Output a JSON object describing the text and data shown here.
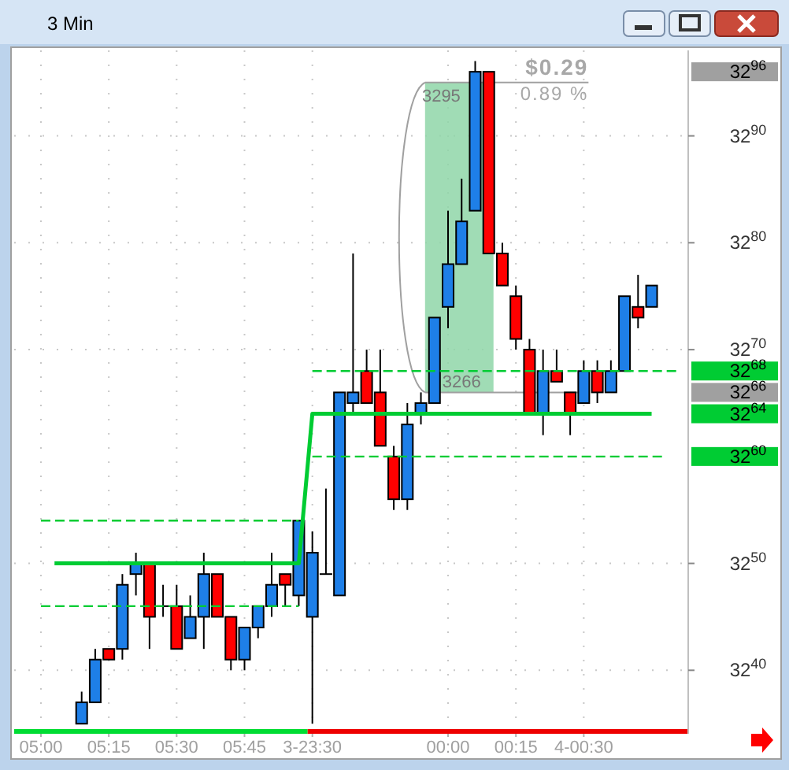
{
  "chart_data": {
    "type": "candlestick",
    "title": "3 Min",
    "categories": [
      "05:00",
      null,
      null,
      null,
      null,
      "05:15",
      null,
      null,
      null,
      null,
      "05:30",
      null,
      null,
      null,
      null,
      "05:45",
      null,
      null,
      null,
      null,
      "3-23:30",
      null,
      null,
      null,
      null,
      null,
      null,
      null,
      null,
      null,
      "00:00",
      null,
      null,
      null,
      null,
      "00:15",
      null,
      null,
      null,
      null,
      "4-00:30",
      null,
      null,
      null,
      null,
      null,
      null,
      null
    ],
    "ohlc": [
      null,
      null,
      null,
      [
        3235,
        3238,
        3235,
        3237
      ],
      [
        3237,
        3242,
        3237,
        3241
      ],
      [
        3242,
        3242,
        3241,
        3241
      ],
      [
        3242,
        3249,
        3241,
        3248
      ],
      [
        3249,
        3251,
        3247,
        3250
      ],
      [
        3250,
        3250,
        3242,
        3245
      ],
      [
        3246,
        3248,
        3245,
        3246
      ],
      [
        3246,
        3248,
        3242,
        3242
      ],
      [
        3243,
        3247,
        3243,
        3245
      ],
      [
        3245,
        3251,
        3242,
        3249
      ],
      [
        3249,
        3249,
        3245,
        3245
      ],
      [
        3245,
        3245,
        3240,
        3241
      ],
      [
        3241,
        3244,
        3240,
        3244
      ],
      [
        3244,
        3246,
        3243,
        3246
      ],
      [
        3246,
        3251,
        3245,
        3248
      ],
      [
        3249,
        3249,
        3246,
        3248
      ],
      [
        3247,
        3254,
        3246,
        3254
      ],
      [
        3245,
        3253,
        3235,
        3251
      ],
      [
        3249,
        3257,
        3249,
        3249
      ],
      [
        3247,
        3266,
        3247,
        3266
      ],
      [
        3265,
        3279,
        3264,
        3266
      ],
      [
        3268,
        3270,
        3265,
        3265
      ],
      [
        3266,
        3270,
        3261,
        3261
      ],
      [
        3260,
        3261,
        3255,
        3256
      ],
      [
        3256,
        3265,
        3255,
        3263
      ],
      [
        3264,
        3266,
        3263,
        3265
      ],
      [
        3265,
        3273,
        3265,
        3273
      ],
      [
        3274,
        3283,
        3272,
        3278
      ],
      [
        3278,
        3286,
        3278,
        3282
      ],
      [
        3283,
        3297,
        3283,
        3296
      ],
      [
        3296,
        3296,
        3279,
        3279
      ],
      [
        3279,
        3280,
        3276,
        3276
      ],
      [
        3275,
        3276,
        3270,
        3271
      ],
      [
        3270,
        3271,
        3264,
        3264
      ],
      [
        3264,
        3270,
        3262,
        3268
      ],
      [
        3268,
        3270,
        3267,
        3267
      ],
      [
        3266,
        3266,
        3262,
        3264
      ],
      [
        3265,
        3269,
        3265,
        3268
      ],
      [
        3268,
        3269,
        3265,
        3266
      ],
      [
        3266,
        3269,
        3266,
        3268
      ],
      [
        3268,
        3275,
        3268,
        3275
      ],
      [
        3274,
        3277,
        3272,
        3273
      ],
      [
        3274,
        3276,
        3274,
        3276
      ],
      null,
      null
    ],
    "series": [
      {
        "type": "line",
        "line_style": "solid",
        "color": "#00cc33",
        "values": [
          null,
          3250,
          3250,
          3250,
          3250,
          3250,
          3250,
          3250,
          3250,
          3250,
          3250,
          3250,
          3250,
          3250,
          3250,
          3250,
          3250,
          3250,
          3250,
          3250,
          3264,
          3264,
          3264,
          3264,
          3264,
          3264,
          3264,
          3264,
          3264,
          3264,
          3264,
          3264,
          3264,
          3264,
          3264,
          3264,
          3264,
          3264,
          3264,
          3264,
          3264,
          3264,
          3264,
          3264,
          3264,
          3264,
          null,
          null
        ]
      },
      {
        "type": "line",
        "line_style": "dashed",
        "color": "#00cc33",
        "values": [
          3254,
          3254,
          3254,
          3254,
          3254,
          3254,
          3254,
          3254,
          3254,
          3254,
          3254,
          3254,
          3254,
          3254,
          3254,
          3254,
          3254,
          3254,
          3254,
          3254,
          null,
          null,
          null,
          null,
          null,
          null,
          null,
          null,
          null,
          null,
          null,
          null,
          null,
          null,
          null,
          null,
          null,
          null,
          null,
          null,
          null,
          null,
          null,
          null,
          null,
          null,
          null,
          null
        ]
      },
      {
        "type": "line",
        "line_style": "dashed",
        "color": "#00cc33",
        "values": [
          3246,
          3246,
          3246,
          3246,
          3246,
          3246,
          3246,
          3246,
          3246,
          3246,
          3246,
          3246,
          3246,
          3246,
          3246,
          3246,
          3246,
          3246,
          3246,
          3246,
          null,
          null,
          null,
          null,
          null,
          null,
          null,
          null,
          null,
          null,
          null,
          null,
          null,
          null,
          null,
          null,
          null,
          null,
          null,
          null,
          null,
          null,
          null,
          null,
          null,
          null,
          null,
          null
        ]
      },
      {
        "type": "line",
        "line_style": "dashed",
        "color": "#00cc33",
        "values": [
          null,
          null,
          null,
          null,
          null,
          null,
          null,
          null,
          null,
          null,
          null,
          null,
          null,
          null,
          null,
          null,
          null,
          null,
          null,
          null,
          3268,
          3268,
          3268,
          3268,
          3268,
          3268,
          3268,
          3268,
          3268,
          3268,
          3268,
          3268,
          3268,
          3268,
          3268,
          3268,
          3268,
          3268,
          3268,
          3268,
          3268,
          3268,
          3268,
          3268,
          3268,
          3268,
          3268,
          3268
        ]
      },
      {
        "type": "line",
        "line_style": "dashed",
        "color": "#00cc33",
        "values": [
          null,
          null,
          null,
          null,
          null,
          null,
          null,
          null,
          null,
          null,
          null,
          null,
          null,
          null,
          null,
          null,
          null,
          null,
          null,
          null,
          3260,
          3260,
          3260,
          3260,
          3260,
          3260,
          3260,
          3260,
          3260,
          3260,
          3260,
          3260,
          3260,
          3260,
          3260,
          3260,
          3260,
          3260,
          3260,
          3260,
          3260,
          3260,
          3260,
          3260,
          3260,
          3260,
          3260,
          null
        ]
      }
    ],
    "ylim": [
      3234.5,
      3298
    ],
    "yticks": [
      3240,
      3250,
      3270,
      3280,
      3290
    ],
    "y2lim": [
      3234.5,
      3298
    ],
    "y2ticks": [
      3260,
      3264,
      3266,
      3268,
      3296
    ],
    "grid": true,
    "bands": [
      {
        "axis": "y",
        "from": 3266,
        "to": 3295,
        "color": "#8fd6a8"
      }
    ],
    "ref_lines": [
      {
        "axis": "y",
        "value": 3295,
        "label": "3295",
        "color": "#a0a0a0"
      },
      {
        "axis": "y",
        "value": 3266,
        "label": "3266",
        "color": "#a0a0a0"
      }
    ],
    "annotations": [
      {
        "text": "$0.29",
        "y": 3295
      },
      {
        "text": "0.89 %",
        "y": 3295
      }
    ]
  }
}
